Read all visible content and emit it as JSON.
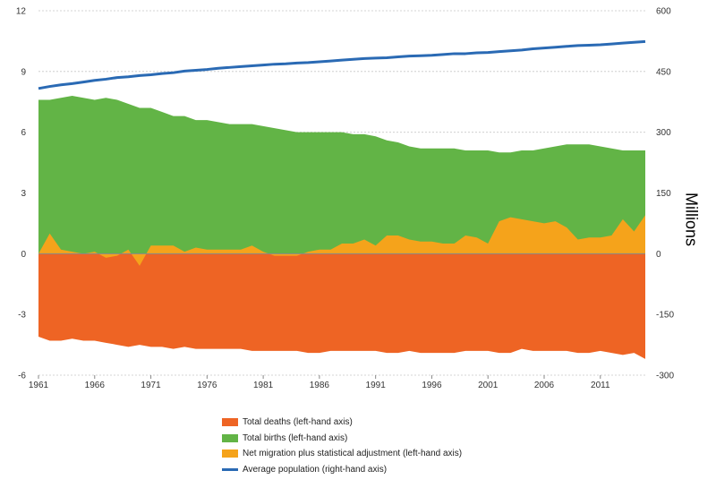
{
  "chart_data": {
    "type": "area",
    "title": "",
    "left_axis": {
      "min": -6,
      "max": 12,
      "ticks": [
        12,
        9,
        6,
        3,
        0,
        -3,
        -6
      ]
    },
    "right_axis": {
      "label": "Millions",
      "min": -300,
      "max": 600,
      "ticks": [
        600,
        450,
        300,
        150,
        0,
        -150,
        -300
      ]
    },
    "x_tick_labels": [
      "1961",
      "1966",
      "1971",
      "1976",
      "1981",
      "1986",
      "1991",
      "1996",
      "2001",
      "2006",
      "2011"
    ],
    "years": [
      1961,
      1962,
      1963,
      1964,
      1965,
      1966,
      1967,
      1968,
      1969,
      1970,
      1971,
      1972,
      1973,
      1974,
      1975,
      1976,
      1977,
      1978,
      1979,
      1980,
      1981,
      1982,
      1983,
      1984,
      1985,
      1986,
      1987,
      1988,
      1989,
      1990,
      1991,
      1992,
      1993,
      1994,
      1995,
      1996,
      1997,
      1998,
      1999,
      2000,
      2001,
      2002,
      2003,
      2004,
      2005,
      2006,
      2007,
      2008,
      2009,
      2010,
      2011,
      2012,
      2013,
      2014,
      2015
    ],
    "series": [
      {
        "name": "Total deaths (left-hand axis)",
        "axis": "left",
        "kind": "area",
        "color": "#ee6424",
        "values": [
          -4.1,
          -4.3,
          -4.3,
          -4.2,
          -4.3,
          -4.3,
          -4.4,
          -4.5,
          -4.6,
          -4.5,
          -4.6,
          -4.6,
          -4.7,
          -4.6,
          -4.7,
          -4.7,
          -4.7,
          -4.7,
          -4.7,
          -4.8,
          -4.8,
          -4.8,
          -4.8,
          -4.8,
          -4.9,
          -4.9,
          -4.8,
          -4.8,
          -4.8,
          -4.8,
          -4.8,
          -4.9,
          -4.9,
          -4.8,
          -4.9,
          -4.9,
          -4.9,
          -4.9,
          -4.8,
          -4.8,
          -4.8,
          -4.9,
          -4.9,
          -4.7,
          -4.8,
          -4.8,
          -4.8,
          -4.8,
          -4.9,
          -4.9,
          -4.8,
          -4.9,
          -5.0,
          -4.9,
          -5.2
        ]
      },
      {
        "name": "Total births (left-hand axis)",
        "axis": "left",
        "kind": "area",
        "color": "#62b446",
        "values": [
          7.6,
          7.6,
          7.7,
          7.8,
          7.7,
          7.6,
          7.7,
          7.6,
          7.4,
          7.2,
          7.2,
          7.0,
          6.8,
          6.8,
          6.6,
          6.6,
          6.5,
          6.4,
          6.4,
          6.4,
          6.3,
          6.2,
          6.1,
          6.0,
          6.0,
          6.0,
          6.0,
          6.0,
          5.9,
          5.9,
          5.8,
          5.6,
          5.5,
          5.3,
          5.2,
          5.2,
          5.2,
          5.2,
          5.1,
          5.1,
          5.1,
          5.0,
          5.0,
          5.1,
          5.1,
          5.2,
          5.3,
          5.4,
          5.4,
          5.4,
          5.3,
          5.2,
          5.1,
          5.1,
          5.1
        ]
      },
      {
        "name": "Net migration plus statistical adjustment (left-hand axis)",
        "axis": "left",
        "kind": "area",
        "color": "#f5a31b",
        "values": [
          0.0,
          1.0,
          0.2,
          0.1,
          0.0,
          0.1,
          -0.2,
          -0.1,
          0.2,
          -0.6,
          0.4,
          0.4,
          0.4,
          0.1,
          0.3,
          0.2,
          0.2,
          0.2,
          0.2,
          0.4,
          0.1,
          -0.1,
          -0.1,
          -0.1,
          0.1,
          0.2,
          0.2,
          0.5,
          0.5,
          0.7,
          0.4,
          0.9,
          0.9,
          0.7,
          0.6,
          0.6,
          0.5,
          0.5,
          0.9,
          0.8,
          0.5,
          1.6,
          1.8,
          1.7,
          1.6,
          1.5,
          1.6,
          1.3,
          0.7,
          0.8,
          0.8,
          0.9,
          1.7,
          1.1,
          1.9
        ]
      },
      {
        "name": "Average population (right-hand axis)",
        "axis": "right",
        "kind": "line",
        "color": "#2a6ab4",
        "values": [
          408,
          413,
          417,
          420,
          424,
          428,
          431,
          435,
          437,
          440,
          442,
          445,
          447,
          451,
          453,
          455,
          458,
          460,
          462,
          464,
          466,
          468,
          469,
          471,
          472,
          474,
          476,
          478,
          480,
          482,
          483,
          484,
          486,
          488,
          489,
          490,
          492,
          494,
          494,
          496,
          497,
          499,
          501,
          503,
          506,
          508,
          510,
          512,
          514,
          515,
          516,
          518,
          520,
          522,
          524
        ]
      }
    ]
  }
}
